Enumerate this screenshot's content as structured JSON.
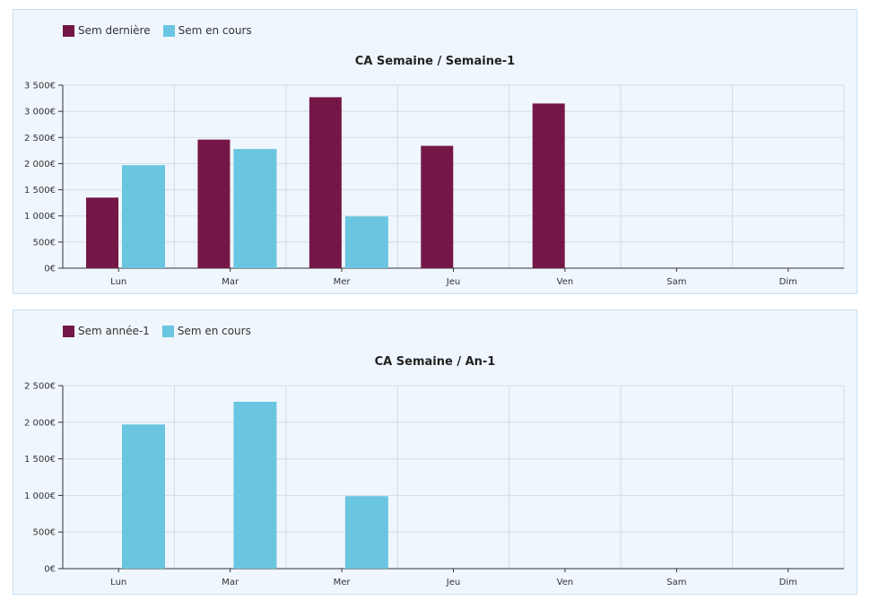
{
  "colors": {
    "prev": "#741747",
    "current": "#6ac5e0",
    "grid": "#d3dde3",
    "axis": "#333333",
    "panel_bg": "#eff6fd"
  },
  "chart_data": [
    {
      "type": "bar",
      "title": "CA Semaine / Semaine-1",
      "categories": [
        "Lun",
        "Mar",
        "Mer",
        "Jeu",
        "Ven",
        "Sam",
        "Dim"
      ],
      "series": [
        {
          "name": "Sem dernière",
          "values": [
            1350,
            2460,
            3270,
            2340,
            3150,
            0,
            0
          ]
        },
        {
          "name": "Sem en cours",
          "values": [
            1970,
            2280,
            990,
            0,
            0,
            0,
            0
          ]
        }
      ],
      "ylim": [
        0,
        3500
      ],
      "yticks": [
        0,
        500,
        1000,
        1500,
        2000,
        2500,
        3000,
        3500
      ],
      "ytick_labels": [
        "0€",
        "500€",
        "1 000€",
        "1 500€",
        "2 000€",
        "2 500€",
        "3 000€",
        "3 500€"
      ],
      "legend": "top-left",
      "grid": true
    },
    {
      "type": "bar",
      "title": "CA Semaine / An-1",
      "categories": [
        "Lun",
        "Mar",
        "Mer",
        "Jeu",
        "Ven",
        "Sam",
        "Dim"
      ],
      "series": [
        {
          "name": "Sem année-1",
          "values": [
            0,
            0,
            0,
            0,
            0,
            0,
            0
          ]
        },
        {
          "name": "Sem en cours",
          "values": [
            1970,
            2280,
            990,
            0,
            0,
            0,
            0
          ]
        }
      ],
      "ylim": [
        0,
        2500
      ],
      "yticks": [
        0,
        500,
        1000,
        1500,
        2000,
        2500
      ],
      "ytick_labels": [
        "0€",
        "500€",
        "1 000€",
        "1 500€",
        "2 000€",
        "2 500€"
      ],
      "legend": "top-left",
      "grid": true
    }
  ]
}
